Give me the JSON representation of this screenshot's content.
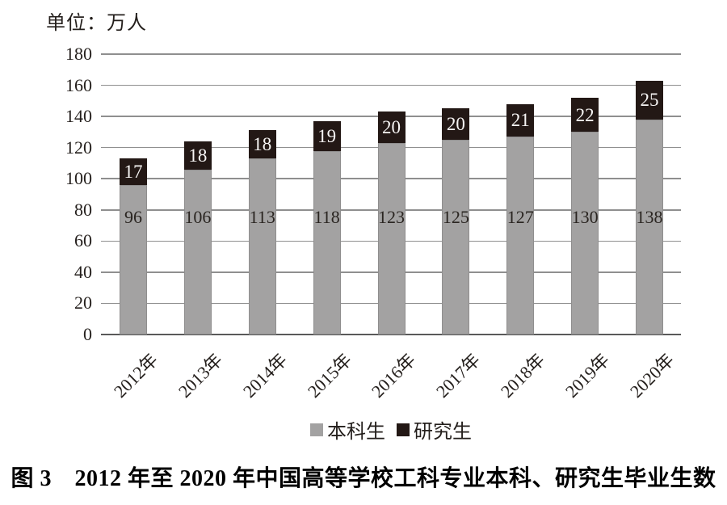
{
  "unit_label": "单位：万人",
  "caption": "图 3　2012 年至 2020 年中国高等学校工科专业本科、研究生毕业生数",
  "legend": {
    "items": [
      {
        "name": "undergraduate",
        "label": "本科生",
        "color": "#a3a2a2"
      },
      {
        "name": "postgraduate",
        "label": "研究生",
        "color": "#231815"
      }
    ]
  },
  "chart_data": {
    "type": "bar",
    "stacked": true,
    "title": "图 3　2012 年至 2020 年中国高等学校工科专业本科、研究生毕业生数",
    "unit_label": "单位：万人",
    "categories": [
      "2012年",
      "2013年",
      "2014年",
      "2015年",
      "2016年",
      "2017年",
      "2018年",
      "2019年",
      "2020年"
    ],
    "series": [
      {
        "name": "本科生",
        "color": "#a3a2a2",
        "label_color": "#2a2521",
        "values": [
          96,
          106,
          113,
          118,
          123,
          125,
          127,
          130,
          138
        ]
      },
      {
        "name": "研究生",
        "color": "#231815",
        "label_color": "#f7f5f4",
        "values": [
          17,
          18,
          18,
          19,
          20,
          20,
          21,
          22,
          25
        ]
      }
    ],
    "ylim": [
      0,
      180
    ],
    "ytick_step": 20,
    "yticks": [
      180,
      160,
      140,
      120,
      100,
      80,
      60,
      40,
      20,
      0
    ],
    "grid": true,
    "legend_position": "bottom",
    "gridline_color": "#8f8f8f",
    "axis_color": "#5a5a5a"
  }
}
